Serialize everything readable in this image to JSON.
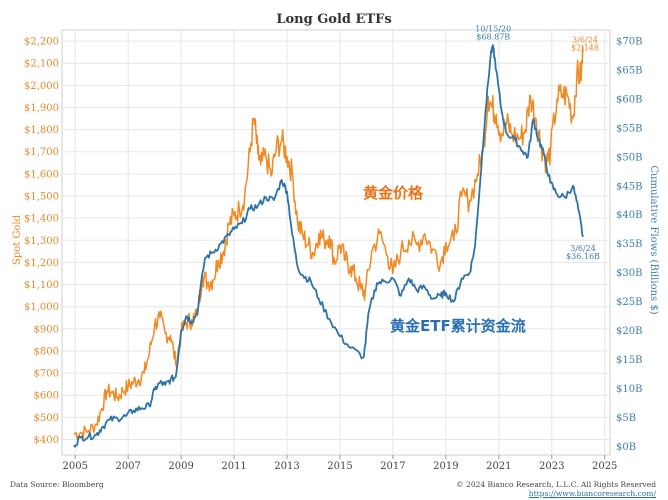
{
  "chart_data": {
    "type": "line",
    "title": "Long Gold ETFs",
    "ylabel_left": "Spot Gold",
    "ylabel_right": "Cumulative Flows (Billions $)",
    "xlim": [
      2004.5,
      2025.2
    ],
    "ylim_left": [
      330,
      2250
    ],
    "ylim_right": [
      -1.5,
      71.9
    ],
    "grid": true,
    "x_ticks": [
      2005,
      2007,
      2009,
      2011,
      2013,
      2015,
      2017,
      2019,
      2021,
      2023,
      2025
    ],
    "x_tick_labels": [
      "2005",
      "2007",
      "2009",
      "2011",
      "2013",
      "2015",
      "2017",
      "2019",
      "2021",
      "2023",
      "2025"
    ],
    "y_left_ticks": [
      400,
      500,
      600,
      700,
      800,
      900,
      1000,
      1100,
      1200,
      1300,
      1400,
      1500,
      1600,
      1700,
      1800,
      1900,
      2000,
      2100,
      2200
    ],
    "y_left_tick_labels": [
      "$400",
      "$500",
      "$600",
      "$700",
      "$800",
      "$900",
      "$1,000",
      "$1,100",
      "$1,200",
      "$1,300",
      "$1,400",
      "$1,500",
      "$1,600",
      "$1,700",
      "$1,800",
      "$1,900",
      "$2,000",
      "$2,100",
      "$2,200"
    ],
    "y_right_ticks": [
      0,
      5,
      10,
      15,
      20,
      25,
      30,
      35,
      40,
      45,
      50,
      55,
      60,
      65,
      70
    ],
    "y_right_tick_labels": [
      "$0B",
      "$5B",
      "$10B",
      "$15B",
      "$20B",
      "$25B",
      "$30B",
      "$35B",
      "$40B",
      "$45B",
      "$50B",
      "$55B",
      "$60B",
      "$65B",
      "$70B"
    ],
    "series": [
      {
        "name": "黄金价格",
        "axis": "left",
        "color": "#f08a24",
        "x": [
          2004.95,
          2005.2,
          2005.5,
          2005.8,
          2006.0,
          2006.2,
          2006.4,
          2006.6,
          2006.8,
          2007.0,
          2007.2,
          2007.4,
          2007.6,
          2007.8,
          2008.0,
          2008.2,
          2008.4,
          2008.6,
          2008.8,
          2009.0,
          2009.2,
          2009.4,
          2009.6,
          2009.8,
          2010.0,
          2010.2,
          2010.4,
          2010.6,
          2010.8,
          2011.0,
          2011.2,
          2011.4,
          2011.6,
          2011.75,
          2011.9,
          2012.0,
          2012.2,
          2012.4,
          2012.6,
          2012.8,
          2013.0,
          2013.2,
          2013.4,
          2013.6,
          2013.8,
          2014.0,
          2014.2,
          2014.4,
          2014.6,
          2014.8,
          2015.0,
          2015.2,
          2015.4,
          2015.6,
          2015.8,
          2015.95,
          2016.2,
          2016.5,
          2016.8,
          2017.0,
          2017.3,
          2017.6,
          2017.9,
          2018.2,
          2018.5,
          2018.8,
          2019.0,
          2019.3,
          2019.6,
          2019.9,
          2020.2,
          2020.4,
          2020.6,
          2020.75,
          2020.9,
          2021.1,
          2021.3,
          2021.5,
          2021.8,
          2022.0,
          2022.2,
          2022.4,
          2022.6,
          2022.8,
          2022.95,
          2023.2,
          2023.4,
          2023.6,
          2023.8,
          2023.95,
          2024.1,
          2024.18
        ],
        "values": [
          425,
          430,
          440,
          470,
          540,
          620,
          610,
          590,
          620,
          640,
          660,
          670,
          700,
          790,
          920,
          950,
          880,
          870,
          740,
          880,
          930,
          940,
          960,
          1140,
          1110,
          1120,
          1210,
          1250,
          1370,
          1410,
          1440,
          1500,
          1700,
          1850,
          1690,
          1640,
          1680,
          1590,
          1720,
          1750,
          1680,
          1600,
          1380,
          1320,
          1280,
          1240,
          1330,
          1300,
          1320,
          1200,
          1280,
          1210,
          1180,
          1130,
          1080,
          1060,
          1250,
          1330,
          1230,
          1150,
          1250,
          1300,
          1280,
          1330,
          1260,
          1200,
          1290,
          1300,
          1500,
          1480,
          1600,
          1700,
          1950,
          1900,
          1870,
          1780,
          1830,
          1780,
          1760,
          1800,
          1950,
          1850,
          1730,
          1650,
          1700,
          1940,
          1960,
          1950,
          1850,
          2050,
          2040,
          2148
        ]
      },
      {
        "name": "黄金ETF累计资金流",
        "axis": "right",
        "color": "#2f73a6",
        "x": [
          2004.95,
          2005.2,
          2005.5,
          2005.8,
          2006.0,
          2006.3,
          2006.6,
          2006.9,
          2007.2,
          2007.5,
          2007.8,
          2008.0,
          2008.2,
          2008.4,
          2008.6,
          2008.8,
          2009.0,
          2009.2,
          2009.4,
          2009.6,
          2009.9,
          2010.2,
          2010.5,
          2010.8,
          2011.0,
          2011.3,
          2011.6,
          2011.9,
          2012.2,
          2012.5,
          2012.8,
          2013.0,
          2013.2,
          2013.4,
          2013.6,
          2013.9,
          2014.2,
          2014.6,
          2015.0,
          2015.4,
          2015.9,
          2016.1,
          2016.4,
          2016.7,
          2017.0,
          2017.3,
          2017.6,
          2017.9,
          2018.2,
          2018.5,
          2018.8,
          2019.0,
          2019.3,
          2019.6,
          2019.9,
          2020.1,
          2020.3,
          2020.5,
          2020.7,
          2020.79,
          2020.9,
          2021.1,
          2021.3,
          2021.6,
          2021.9,
          2022.1,
          2022.3,
          2022.5,
          2022.7,
          2022.95,
          2023.2,
          2023.5,
          2023.8,
          2024.0,
          2024.18
        ],
        "values": [
          0.2,
          1.5,
          1.7,
          2.0,
          3.2,
          4.6,
          4.8,
          5.2,
          6.2,
          6.6,
          7.0,
          9.8,
          11.0,
          10.6,
          11.5,
          12.0,
          20.0,
          22.5,
          21.5,
          23.0,
          32.5,
          33.5,
          35.0,
          36.5,
          37.5,
          38.5,
          41.0,
          41.5,
          43.0,
          42.5,
          46.0,
          44.0,
          36.5,
          31.0,
          29.5,
          28.5,
          25.5,
          22.0,
          19.0,
          17.0,
          15.4,
          23.5,
          28.2,
          28.5,
          29.0,
          26.0,
          29.0,
          27.0,
          27.5,
          25.5,
          26.0,
          26.5,
          25.0,
          29.0,
          30.0,
          34.5,
          46.0,
          58.0,
          68.0,
          68.87,
          65.0,
          58.0,
          54.0,
          53.0,
          51.0,
          50.0,
          56.5,
          53.0,
          50.5,
          45.5,
          43.5,
          43.0,
          45.0,
          41.0,
          36.16
        ]
      }
    ],
    "annotations": [
      {
        "series": 1,
        "x": 2020.79,
        "y": 68.87,
        "date": "10/15/20",
        "value": "$68.87B"
      },
      {
        "series": 0,
        "x": 2024.18,
        "y": 2148,
        "date": "3/6/24",
        "value": "$2,148"
      },
      {
        "series": 1,
        "x": 2024.18,
        "y": 36.16,
        "date": "3/6/24",
        "value": "$36.16B"
      }
    ],
    "series_labels": [
      "黄金价格",
      "黄金ETF累计资金流"
    ]
  },
  "footer": {
    "source": "Data Source: Bloomberg",
    "copyright": "© 2024  Bianco Research, L.L.C. All Rights Reserved",
    "url": "https://www.biancoresearch.com/"
  }
}
